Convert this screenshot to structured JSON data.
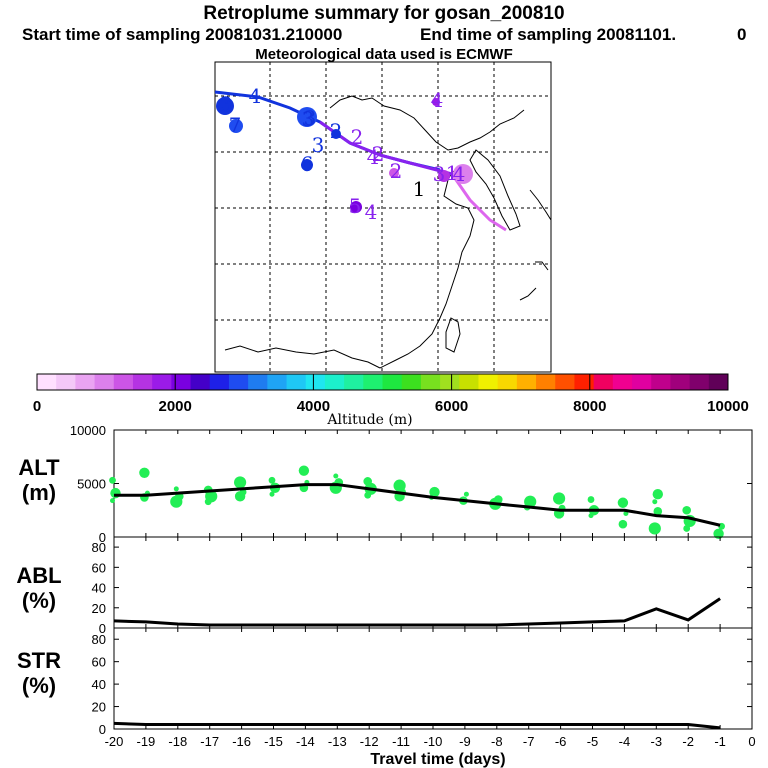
{
  "header": {
    "title": "Retroplume summary for gosan_200810",
    "start_label": "Start time of sampling 20081031.210000",
    "end_label": "End time of sampling 20081101.",
    "end_suffix": "0",
    "met_line": "Meteorological data used is ECMWF"
  },
  "colors": {
    "line": "#000000",
    "alt_dots": "#22ee55",
    "plume_blue": "#1133dd",
    "plume_violet": "#8822ee",
    "plume_pink": "#dd66ee"
  },
  "colorbar": {
    "ticks": [
      "0",
      "2000",
      "4000",
      "6000",
      "8000",
      "10000"
    ],
    "label": "Altitude (m)",
    "colors": [
      "#ffe0ff",
      "#f4c8f8",
      "#eaa4f2",
      "#dc80ec",
      "#cc55e6",
      "#b533e3",
      "#9b1be8",
      "#7a00e0",
      "#4400c8",
      "#1e20e8",
      "#1f4cf0",
      "#1f7cf0",
      "#1fa4f5",
      "#1fc8f5",
      "#1fe6f0",
      "#1cf0cc",
      "#1ff0a0",
      "#1ef070",
      "#1ee840",
      "#3ce01f",
      "#78e01f",
      "#a0e01f",
      "#c8e000",
      "#f0f000",
      "#f8d800",
      "#ffb000",
      "#ff8000",
      "#ff5000",
      "#ff2000",
      "#f00060",
      "#f00090",
      "#e000a0",
      "#c0008c",
      "#a0007c",
      "#80006c",
      "#600058"
    ]
  },
  "map": {
    "labels": [
      {
        "text": "4",
        "color": "#8822ee"
      },
      {
        "text": "3",
        "color": "#1133dd"
      },
      {
        "text": "4",
        "color": "#1133dd"
      },
      {
        "text": "7",
        "color": "#1133dd"
      },
      {
        "text": "3",
        "color": "#1133dd"
      },
      {
        "text": "3",
        "color": "#1133dd"
      },
      {
        "text": "2",
        "color": "#1133dd"
      },
      {
        "text": "3",
        "color": "#1133dd"
      },
      {
        "text": "6",
        "color": "#1133dd"
      },
      {
        "text": "2",
        "color": "#8822ee"
      },
      {
        "text": "4",
        "color": "#8822ee"
      },
      {
        "text": "2",
        "color": "#8822ee"
      },
      {
        "text": "2",
        "color": "#8822ee"
      },
      {
        "text": "3",
        "color": "#8822ee"
      },
      {
        "text": "4",
        "color": "#8822ee"
      },
      {
        "text": "1",
        "color": "#8822ee"
      },
      {
        "text": "1",
        "color": "#000000"
      },
      {
        "text": "5",
        "color": "#8822ee"
      },
      {
        "text": "4",
        "color": "#8822ee"
      }
    ]
  },
  "chart_data": [
    {
      "type": "line",
      "panel": "ALT",
      "ylabel_line1": "ALT",
      "ylabel_line2": "(m)",
      "ylim": [
        0,
        10000
      ],
      "yticks": [
        "0",
        "5000",
        "10000"
      ],
      "x": [
        -20,
        -19,
        -18,
        -17,
        -16,
        -15,
        -14,
        -13,
        -12,
        -11,
        -10,
        -9,
        -8,
        -7,
        -6,
        -5,
        -4,
        -3,
        -2,
        -1
      ],
      "values": [
        3900,
        3900,
        4100,
        4300,
        4500,
        4700,
        4900,
        4900,
        4500,
        4100,
        3700,
        3400,
        3100,
        2800,
        2500,
        2500,
        2500,
        2000,
        1800,
        1100
      ],
      "scatter_values": [
        [
          3400,
          4100,
          5300
        ],
        [
          3700,
          4100,
          6000
        ],
        [
          3300,
          3800,
          4500
        ],
        [
          3300,
          3800,
          4400
        ],
        [
          3800,
          4200,
          5100
        ],
        [
          4000,
          4600,
          5300
        ],
        [
          4600,
          5100,
          6200
        ],
        [
          4600,
          5100,
          5700
        ],
        [
          3900,
          4500,
          5200
        ],
        [
          3800,
          4200,
          4800
        ],
        [
          3700,
          4200
        ],
        [
          3400,
          4000
        ],
        [
          3100,
          3500
        ],
        [
          2800,
          3300
        ],
        [
          2200,
          2700,
          3600
        ],
        [
          2000,
          2500,
          3500
        ],
        [
          1200,
          2200,
          3200
        ],
        [
          800,
          2400,
          3300,
          4000
        ],
        [
          800,
          1500,
          2500
        ],
        [
          300,
          1000
        ]
      ]
    },
    {
      "type": "line",
      "panel": "ABL",
      "ylabel_line1": "ABL",
      "ylabel_line2": "(%)",
      "ylim": [
        0,
        90
      ],
      "yticks": [
        "0",
        "20",
        "40",
        "60",
        "80"
      ],
      "x": [
        -20,
        -19,
        -18,
        -17,
        -16,
        -15,
        -14,
        -13,
        -12,
        -11,
        -10,
        -9,
        -8,
        -7,
        -6,
        -5,
        -4,
        -3,
        -2,
        -1
      ],
      "values": [
        7,
        6,
        4,
        3,
        3,
        3,
        3,
        3,
        3,
        3,
        3,
        3,
        3,
        4,
        5,
        6,
        7,
        19,
        8,
        29
      ]
    },
    {
      "type": "line",
      "panel": "STR",
      "ylabel_line1": "STR",
      "ylabel_line2": "(%)",
      "ylim": [
        0,
        90
      ],
      "yticks": [
        "0",
        "20",
        "40",
        "60",
        "80"
      ],
      "x": [
        -20,
        -19,
        -18,
        -17,
        -16,
        -15,
        -14,
        -13,
        -12,
        -11,
        -10,
        -9,
        -8,
        -7,
        -6,
        -5,
        -4,
        -3,
        -2,
        -1
      ],
      "values": [
        5,
        4,
        4,
        4,
        4,
        4,
        4,
        4,
        4,
        4,
        4,
        4,
        4,
        4,
        4,
        4,
        4,
        4,
        4,
        1
      ]
    },
    {
      "type": "axis",
      "xticks": [
        "-20",
        "-19",
        "-18",
        "-17",
        "-16",
        "-15",
        "-14",
        "-13",
        "-12",
        "-11",
        "-10",
        "-9",
        "-8",
        "-7",
        "-6",
        "-5",
        "-4",
        "-3",
        "-2",
        "-1",
        "0"
      ],
      "xlabel": "Travel time (days)",
      "xlim": [
        -20,
        0
      ]
    }
  ]
}
